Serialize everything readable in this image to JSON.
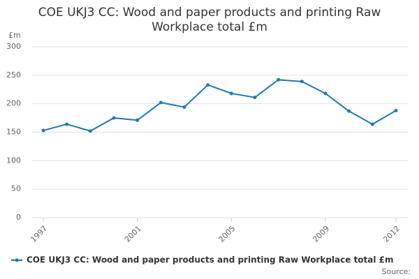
{
  "chart_data": {
    "type": "line",
    "title": "COE UKJ3 CC: Wood and paper products and printing Raw Workplace total £m",
    "y_label": "£m",
    "source": "Source:",
    "x": [
      1997,
      1998,
      1999,
      2000,
      2001,
      2002,
      2003,
      2004,
      2005,
      2006,
      2007,
      2008,
      2009,
      2010,
      2011,
      2012
    ],
    "xlim": [
      1997,
      2012
    ],
    "xticks": [
      1997,
      2001,
      2005,
      2009,
      2012
    ],
    "ylim": [
      0,
      300
    ],
    "yticks": [
      0,
      50,
      100,
      150,
      200,
      250,
      300
    ],
    "grid": true,
    "legend": "bottom",
    "series": [
      {
        "name": "COE UKJ3 CC: Wood and paper products and printing Raw Workplace total £m",
        "color": "#1f78b4",
        "values": [
          153,
          164,
          152,
          175,
          171,
          202,
          194,
          233,
          218,
          211,
          242,
          239,
          218,
          187,
          164,
          188
        ]
      }
    ]
  }
}
